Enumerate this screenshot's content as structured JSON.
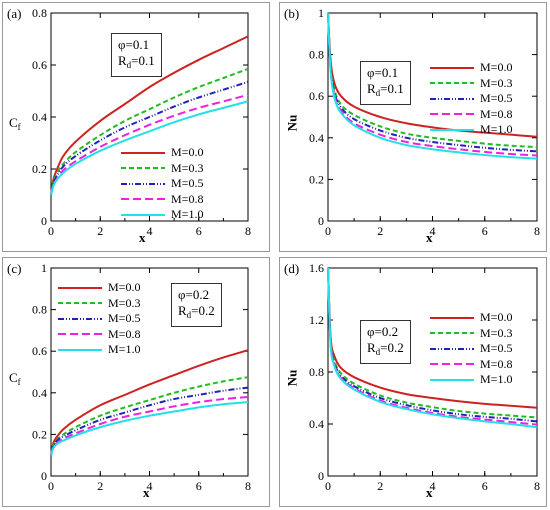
{
  "chart_data": [
    {
      "type": "line",
      "tag": "(a)",
      "params": {
        "phi": "0.1",
        "rd": "0.1"
      },
      "ylabel": "C",
      "ylabel_sub": "f",
      "xlabel": "x",
      "xlim": [
        0,
        8
      ],
      "ylim": [
        0,
        0.8
      ],
      "xticks": [
        "0",
        "2",
        "4",
        "6",
        "8"
      ],
      "yticks": [
        "0",
        "0.2",
        "0.4",
        "0.6",
        "0.8"
      ],
      "series": [
        {
          "name": "M=0.0",
          "x": [
            0,
            0.1,
            0.25,
            0.5,
            1,
            2,
            3,
            4,
            5,
            6,
            7,
            8
          ],
          "y": [
            0.1,
            0.16,
            0.2,
            0.25,
            0.305,
            0.385,
            0.45,
            0.515,
            0.57,
            0.62,
            0.665,
            0.71
          ]
        },
        {
          "name": "M=0.3",
          "x": [
            0,
            0.1,
            0.25,
            0.5,
            1,
            2,
            3,
            4,
            5,
            6,
            7,
            8
          ],
          "y": [
            0.1,
            0.15,
            0.185,
            0.22,
            0.265,
            0.33,
            0.385,
            0.43,
            0.475,
            0.515,
            0.55,
            0.585
          ]
        },
        {
          "name": "M=0.5",
          "x": [
            0,
            0.1,
            0.25,
            0.5,
            1,
            2,
            3,
            4,
            5,
            6,
            7,
            8
          ],
          "y": [
            0.1,
            0.145,
            0.175,
            0.21,
            0.25,
            0.31,
            0.36,
            0.4,
            0.44,
            0.475,
            0.505,
            0.535
          ]
        },
        {
          "name": "M=0.8",
          "x": [
            0,
            0.1,
            0.25,
            0.5,
            1,
            2,
            3,
            4,
            5,
            6,
            7,
            8
          ],
          "y": [
            0.1,
            0.14,
            0.165,
            0.195,
            0.23,
            0.285,
            0.33,
            0.37,
            0.405,
            0.435,
            0.46,
            0.485
          ]
        },
        {
          "name": "M=1.0",
          "x": [
            0,
            0.1,
            0.25,
            0.5,
            1,
            2,
            3,
            4,
            5,
            6,
            7,
            8
          ],
          "y": [
            0.1,
            0.135,
            0.16,
            0.185,
            0.22,
            0.27,
            0.31,
            0.345,
            0.38,
            0.41,
            0.435,
            0.46
          ]
        }
      ]
    },
    {
      "type": "line",
      "tag": "(b)",
      "params": {
        "phi": "0.1",
        "rd": "0.1"
      },
      "ylabel": "Nu",
      "ylabel_sub": "",
      "xlabel": "x",
      "xlim": [
        0,
        8
      ],
      "ylim": [
        0,
        1.0
      ],
      "xticks": [
        "0",
        "2",
        "4",
        "6",
        "8"
      ],
      "yticks": [
        "0",
        "0.2",
        "0.4",
        "0.6",
        "0.8",
        "1"
      ],
      "series": [
        {
          "name": "M=0.0",
          "x": [
            0,
            0.1,
            0.25,
            0.5,
            1,
            2,
            3,
            4,
            5,
            6,
            7,
            8
          ],
          "y": [
            1.0,
            0.77,
            0.66,
            0.6,
            0.55,
            0.5,
            0.47,
            0.45,
            0.435,
            0.425,
            0.415,
            0.405
          ]
        },
        {
          "name": "M=0.3",
          "x": [
            0,
            0.1,
            0.25,
            0.5,
            1,
            2,
            3,
            4,
            5,
            6,
            7,
            8
          ],
          "y": [
            1.0,
            0.75,
            0.63,
            0.56,
            0.51,
            0.455,
            0.42,
            0.4,
            0.385,
            0.372,
            0.362,
            0.355
          ]
        },
        {
          "name": "M=0.5",
          "x": [
            0,
            0.1,
            0.25,
            0.5,
            1,
            2,
            3,
            4,
            5,
            6,
            7,
            8
          ],
          "y": [
            1.0,
            0.74,
            0.615,
            0.545,
            0.49,
            0.435,
            0.4,
            0.38,
            0.365,
            0.352,
            0.342,
            0.335
          ]
        },
        {
          "name": "M=0.8",
          "x": [
            0,
            0.1,
            0.25,
            0.5,
            1,
            2,
            3,
            4,
            5,
            6,
            7,
            8
          ],
          "y": [
            1.0,
            0.73,
            0.6,
            0.53,
            0.47,
            0.415,
            0.38,
            0.36,
            0.345,
            0.332,
            0.322,
            0.315
          ]
        },
        {
          "name": "M=1.0",
          "x": [
            0,
            0.1,
            0.25,
            0.5,
            1,
            2,
            3,
            4,
            5,
            6,
            7,
            8
          ],
          "y": [
            1.0,
            0.72,
            0.59,
            0.52,
            0.46,
            0.4,
            0.365,
            0.345,
            0.33,
            0.317,
            0.307,
            0.3
          ]
        }
      ]
    },
    {
      "type": "line",
      "tag": "(c)",
      "params": {
        "phi": "0.2",
        "rd": "0.2"
      },
      "ylabel": "C",
      "ylabel_sub": "f",
      "xlabel": "x",
      "xlim": [
        0,
        8
      ],
      "ylim": [
        0,
        1.0
      ],
      "xticks": [
        "0",
        "2",
        "4",
        "6",
        "8"
      ],
      "yticks": [
        "0",
        "0.2",
        "0.4",
        "0.6",
        "0.8",
        "1"
      ],
      "series": [
        {
          "name": "M=0.0",
          "x": [
            0,
            0.1,
            0.25,
            0.5,
            1,
            2,
            3,
            4,
            5,
            6,
            7,
            8
          ],
          "y": [
            0.1,
            0.16,
            0.19,
            0.225,
            0.27,
            0.34,
            0.39,
            0.44,
            0.485,
            0.53,
            0.57,
            0.605
          ]
        },
        {
          "name": "M=0.3",
          "x": [
            0,
            0.1,
            0.25,
            0.5,
            1,
            2,
            3,
            4,
            5,
            6,
            7,
            8
          ],
          "y": [
            0.1,
            0.15,
            0.175,
            0.2,
            0.235,
            0.29,
            0.33,
            0.365,
            0.4,
            0.43,
            0.455,
            0.475
          ]
        },
        {
          "name": "M=0.5",
          "x": [
            0,
            0.1,
            0.25,
            0.5,
            1,
            2,
            3,
            4,
            5,
            6,
            7,
            8
          ],
          "y": [
            0.1,
            0.145,
            0.17,
            0.19,
            0.22,
            0.27,
            0.305,
            0.34,
            0.37,
            0.39,
            0.41,
            0.425
          ]
        },
        {
          "name": "M=0.8",
          "x": [
            0,
            0.1,
            0.25,
            0.5,
            1,
            2,
            3,
            4,
            5,
            6,
            7,
            8
          ],
          "y": [
            0.1,
            0.14,
            0.16,
            0.18,
            0.205,
            0.25,
            0.285,
            0.31,
            0.335,
            0.355,
            0.37,
            0.38
          ]
        },
        {
          "name": "M=1.0",
          "x": [
            0,
            0.1,
            0.25,
            0.5,
            1,
            2,
            3,
            4,
            5,
            6,
            7,
            8
          ],
          "y": [
            0.1,
            0.135,
            0.155,
            0.17,
            0.195,
            0.235,
            0.265,
            0.29,
            0.31,
            0.33,
            0.345,
            0.355
          ]
        }
      ]
    },
    {
      "type": "line",
      "tag": "(d)",
      "params": {
        "phi": "0.2",
        "rd": "0.2"
      },
      "ylabel": "Nu",
      "ylabel_sub": "",
      "xlabel": "x",
      "xlim": [
        0,
        8
      ],
      "ylim": [
        0,
        1.6
      ],
      "xticks": [
        "0",
        "2",
        "4",
        "6",
        "8"
      ],
      "yticks": [
        "0",
        "0.4",
        "0.8",
        "1.2",
        "1.6"
      ],
      "series": [
        {
          "name": "M=0.0",
          "x": [
            0,
            0.1,
            0.25,
            0.5,
            1,
            2,
            3,
            4,
            5,
            6,
            7,
            8
          ],
          "y": [
            1.6,
            1.07,
            0.92,
            0.83,
            0.76,
            0.68,
            0.63,
            0.6,
            0.575,
            0.555,
            0.54,
            0.525
          ]
        },
        {
          "name": "M=0.3",
          "x": [
            0,
            0.1,
            0.25,
            0.5,
            1,
            2,
            3,
            4,
            5,
            6,
            7,
            8
          ],
          "y": [
            1.6,
            1.04,
            0.88,
            0.79,
            0.71,
            0.62,
            0.565,
            0.53,
            0.5,
            0.48,
            0.465,
            0.45
          ]
        },
        {
          "name": "M=0.5",
          "x": [
            0,
            0.1,
            0.25,
            0.5,
            1,
            2,
            3,
            4,
            5,
            6,
            7,
            8
          ],
          "y": [
            1.6,
            1.03,
            0.865,
            0.77,
            0.69,
            0.6,
            0.545,
            0.505,
            0.475,
            0.455,
            0.44,
            0.42
          ]
        },
        {
          "name": "M=0.8",
          "x": [
            0,
            0.1,
            0.25,
            0.5,
            1,
            2,
            3,
            4,
            5,
            6,
            7,
            8
          ],
          "y": [
            1.6,
            1.02,
            0.85,
            0.755,
            0.675,
            0.58,
            0.525,
            0.485,
            0.455,
            0.435,
            0.415,
            0.395
          ]
        },
        {
          "name": "M=1.0",
          "x": [
            0,
            0.1,
            0.25,
            0.5,
            1,
            2,
            3,
            4,
            5,
            6,
            7,
            8
          ],
          "y": [
            1.6,
            1.01,
            0.84,
            0.745,
            0.665,
            0.57,
            0.515,
            0.475,
            0.445,
            0.42,
            0.4,
            0.375
          ]
        }
      ]
    }
  ],
  "series_styles": [
    {
      "color": "#cc2222",
      "dash": ""
    },
    {
      "color": "#22bb22",
      "dash": "5,3"
    },
    {
      "color": "#2222bb",
      "dash": "6,2,1,2,1,2"
    },
    {
      "color": "#ee22dd",
      "dash": "8,4"
    },
    {
      "color": "#22e0e8",
      "dash": ""
    }
  ],
  "param_labels": {
    "phi": "φ=",
    "rd": "R"
  }
}
